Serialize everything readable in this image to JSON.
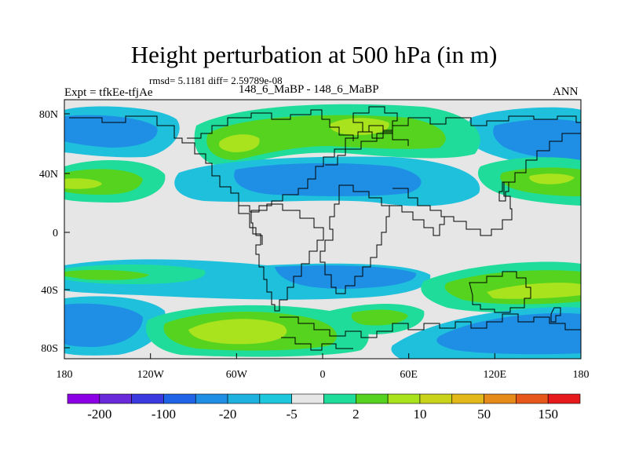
{
  "title": "Height perturbation at 500 hPa (in m)",
  "stats": "rmsd= 5.1181 diff= 2.59789e-08",
  "experiment_label": "Expt = tfkEe-tfjAe",
  "period_label": "148_6_MaBP - 148_6_MaBP",
  "season_label": "ANN",
  "map": {
    "projection": "cylindrical equidistant",
    "lon_range": [
      -180,
      180
    ],
    "lat_range": [
      -90,
      90
    ],
    "x_ticks": [
      "180",
      "120W",
      "60W",
      "0",
      "60E",
      "120E",
      "180"
    ],
    "y_ticks": [
      "80N",
      "40N",
      "0",
      "40S",
      "80S"
    ]
  },
  "colorbar": {
    "colors": [
      "#8c00e6",
      "#6a2ad9",
      "#3a3adf",
      "#1f63e6",
      "#1f8fe6",
      "#1fb2e0",
      "#1fc7dc",
      "#e6e6e6",
      "#20dc9b",
      "#55d31e",
      "#a8e31e",
      "#c8d31a",
      "#e3b81a",
      "#e68a1a",
      "#e6581a",
      "#e61a1a"
    ],
    "labels": [
      "-200",
      "-100",
      "-20",
      "-5",
      "2",
      "10",
      "50",
      "150"
    ]
  },
  "colors": {
    "neutral": "#e6e6e6",
    "light_blue": "#1fc0dc",
    "blue": "#1f8fe6",
    "deep_blue": "#1f63e6",
    "teal": "#20dc9b",
    "green": "#55d31e",
    "yellow_green": "#a8e31e",
    "coast": "#000000"
  }
}
